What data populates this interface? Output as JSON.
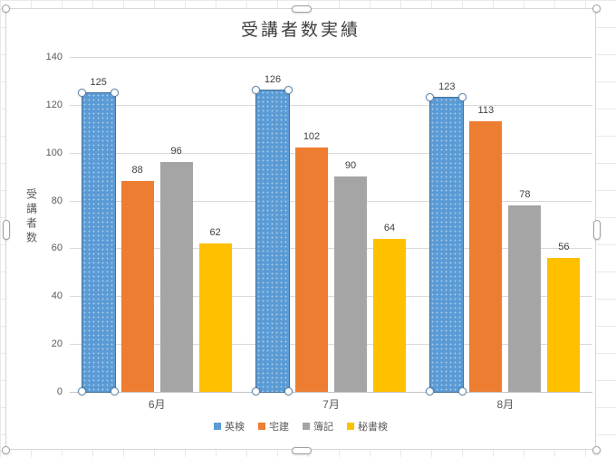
{
  "selection": {
    "chart_selected": true,
    "selected_series": "英検"
  },
  "chart_data": {
    "type": "bar",
    "title": "受講者数実績",
    "ylabel": "受講者数",
    "xlabel": "",
    "categories": [
      "6月",
      "7月",
      "8月"
    ],
    "series": [
      {
        "name": "英検",
        "color": "#5B9BD5",
        "values": [
          125,
          126,
          123
        ],
        "selected": true
      },
      {
        "name": "宅建",
        "color": "#ED7D31",
        "values": [
          88,
          102,
          113
        ],
        "selected": false
      },
      {
        "name": "簿記",
        "color": "#A5A5A5",
        "values": [
          96,
          90,
          78
        ],
        "selected": false
      },
      {
        "name": "秘書検",
        "color": "#FFC000",
        "values": [
          62,
          64,
          56
        ],
        "selected": false
      }
    ],
    "ylim": [
      0,
      140
    ],
    "ytick_step": 20,
    "yticks": [
      0,
      20,
      40,
      60,
      80,
      100,
      120,
      140
    ],
    "grid": true,
    "legend_position": "bottom",
    "data_labels": true,
    "colors": {
      "gridline": "#D9D9D9",
      "axis_line": "#C3C3C3",
      "data_label_text": "#404040",
      "axis_text": "#595959"
    }
  }
}
